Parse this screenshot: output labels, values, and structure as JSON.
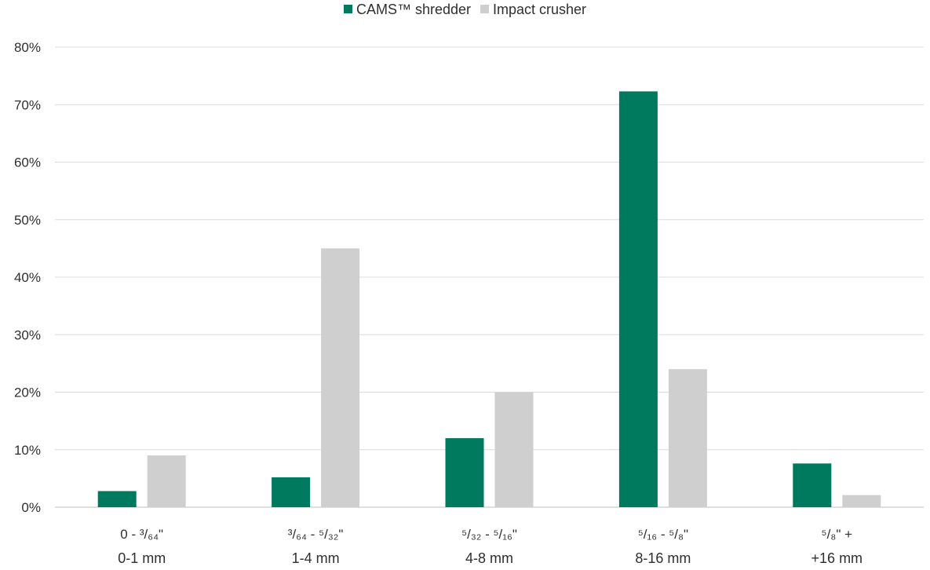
{
  "chart_data": {
    "type": "bar",
    "title": "",
    "xlabel": "",
    "ylabel": "",
    "ylim": [
      0,
      80
    ],
    "yticks": [
      0,
      10,
      20,
      30,
      40,
      50,
      60,
      70,
      80
    ],
    "ytick_labels": [
      "0%",
      "10%",
      "20%",
      "30%",
      "40%",
      "50%",
      "60%",
      "70%",
      "80%"
    ],
    "grid": "horizontal",
    "legend_position": "top-center",
    "categories": [
      {
        "inch": "0 - ³/₆₄\"",
        "mm": "0-1 mm"
      },
      {
        "inch": "³/₆₄ - ⁵/₃₂\"",
        "mm": "1-4 mm"
      },
      {
        "inch": "⁵/₃₂ - ⁵/₁₆\"",
        "mm": "4-8 mm"
      },
      {
        "inch": "⁵/₁₆ - ⁵/₈\"",
        "mm": "8-16 mm"
      },
      {
        "inch": "⁵/₈\" +",
        "mm": "+16 mm"
      }
    ],
    "series": [
      {
        "name": "CAMS™ shredder",
        "color": "#007a5e",
        "values": [
          2.8,
          5.2,
          12.0,
          72.3,
          7.6
        ]
      },
      {
        "name": "Impact crusher",
        "color": "#d0cfcf",
        "values": [
          9.0,
          45.0,
          20.0,
          24.0,
          2.1
        ]
      }
    ]
  }
}
